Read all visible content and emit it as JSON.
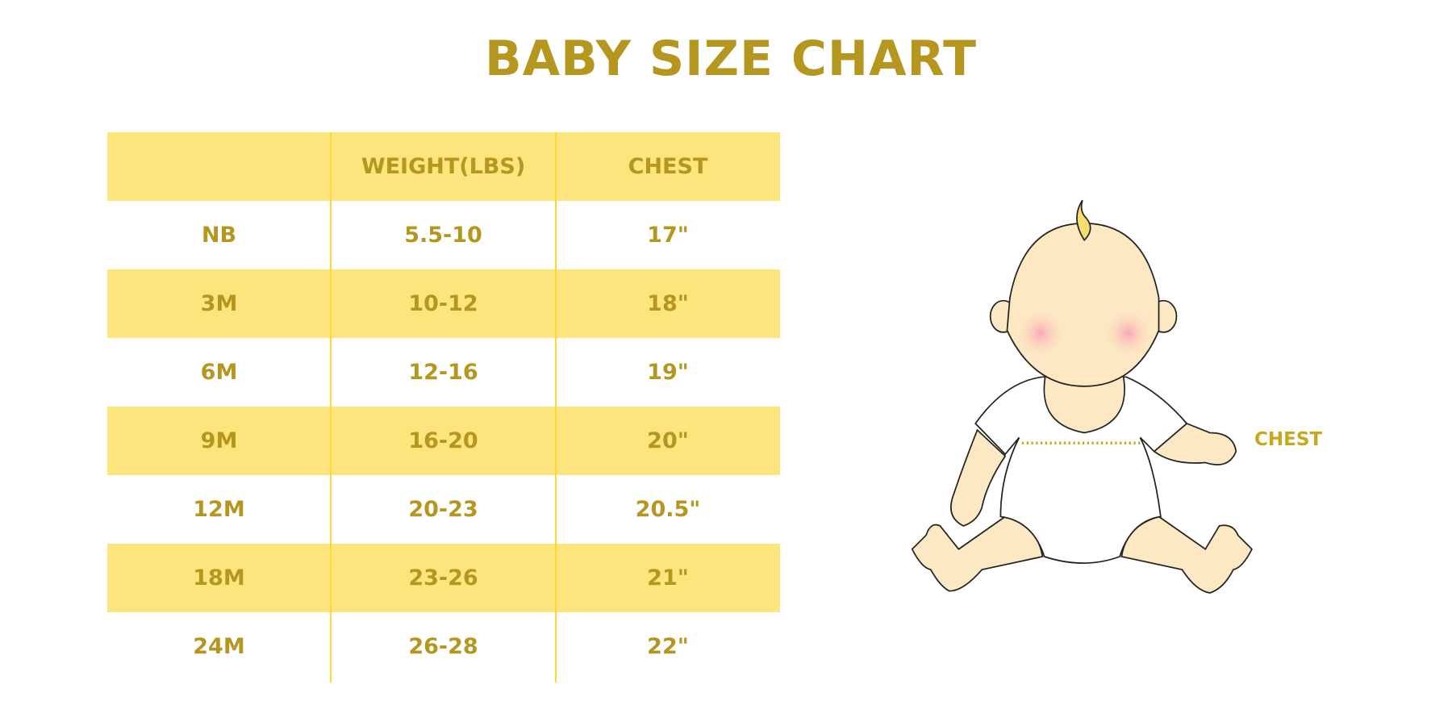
{
  "title": "BABY SIZE CHART",
  "table": {
    "headers": [
      "",
      "WEIGHT(LBS)",
      "CHEST"
    ],
    "rows": [
      [
        "NB",
        "5.5-10",
        "17\""
      ],
      [
        "3M",
        "10-12",
        "18\""
      ],
      [
        "6M",
        "12-16",
        "19\""
      ],
      [
        "9M",
        "16-20",
        "20\""
      ],
      [
        "12M",
        "20-23",
        "20.5\""
      ],
      [
        "18M",
        "23-26",
        "21\""
      ],
      [
        "24M",
        "26-28",
        "22\""
      ]
    ]
  },
  "illustration": {
    "chest_label": "CHEST"
  },
  "colors": {
    "text": "#b5961e",
    "band": "#fbe57c",
    "divider": "#fdd835",
    "skin": "#fde8c4"
  }
}
